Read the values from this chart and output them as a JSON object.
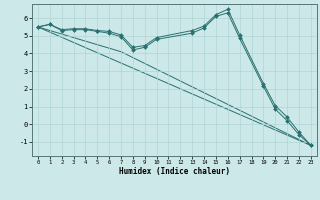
{
  "xlabel": "Humidex (Indice chaleur)",
  "xlim": [
    -0.5,
    23.5
  ],
  "ylim": [
    -1.8,
    6.8
  ],
  "yticks": [
    -1,
    0,
    1,
    2,
    3,
    4,
    5,
    6
  ],
  "xticks": [
    0,
    1,
    2,
    3,
    4,
    5,
    6,
    7,
    8,
    9,
    10,
    11,
    12,
    13,
    14,
    15,
    16,
    17,
    18,
    19,
    20,
    21,
    22,
    23
  ],
  "bg_color": "#cce8e8",
  "grid_color": "#b0d4d4",
  "line_color": "#2a7070",
  "line1_x": [
    0,
    1,
    2,
    3,
    4,
    5,
    6,
    7,
    8,
    9,
    10,
    13,
    14,
    15,
    16,
    17,
    19,
    20,
    21,
    22,
    23
  ],
  "line1_y": [
    5.5,
    5.65,
    5.35,
    5.4,
    5.4,
    5.3,
    5.25,
    5.05,
    4.35,
    4.45,
    4.9,
    5.3,
    5.55,
    6.2,
    6.5,
    5.05,
    2.3,
    1.05,
    0.4,
    -0.45,
    -1.2
  ],
  "line2_x": [
    0,
    1,
    2,
    3,
    4,
    5,
    6,
    7,
    8,
    9,
    10,
    13,
    14,
    15,
    16,
    17,
    19,
    20,
    21,
    22,
    23
  ],
  "line2_y": [
    5.5,
    5.65,
    5.3,
    5.35,
    5.35,
    5.25,
    5.15,
    4.95,
    4.2,
    4.35,
    4.8,
    5.15,
    5.45,
    6.1,
    6.3,
    4.85,
    2.15,
    0.85,
    0.2,
    -0.6,
    -1.2
  ],
  "line3_x": [
    0,
    23
  ],
  "line3_y": [
    5.5,
    -1.2
  ],
  "line4_x": [
    0,
    7,
    23
  ],
  "line4_y": [
    5.5,
    4.1,
    -1.2
  ]
}
